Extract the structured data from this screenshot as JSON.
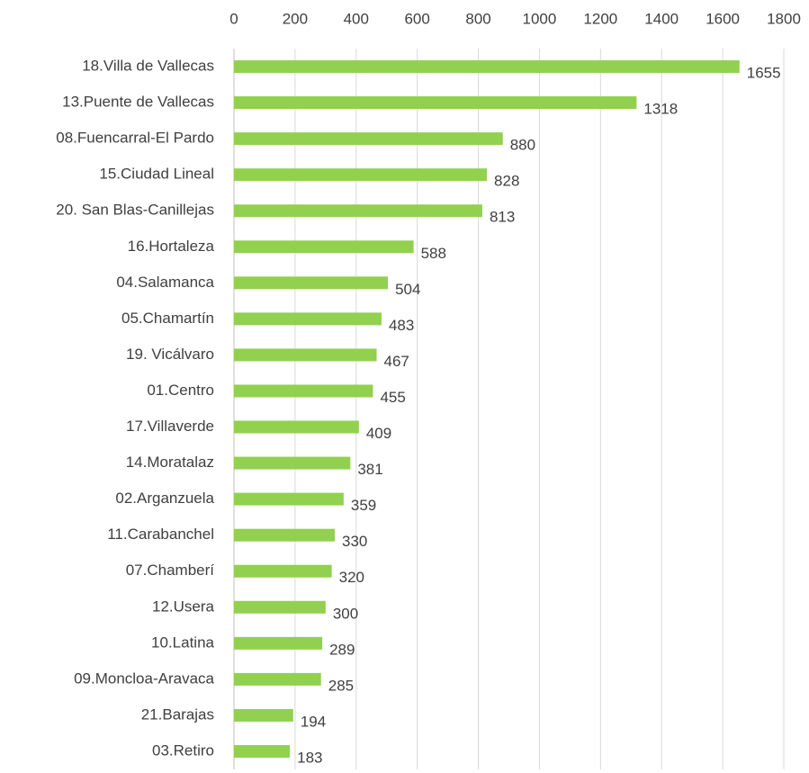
{
  "chart_data": {
    "type": "bar",
    "orientation": "horizontal",
    "categories": [
      "18.Villa de Vallecas",
      "13.Puente de Vallecas",
      "08.Fuencarral-El Pardo",
      "15.Ciudad Lineal",
      "20. San Blas-Canillejas",
      "16.Hortaleza",
      "04.Salamanca",
      "05.Chamartín",
      "19. Vicálvaro",
      "01.Centro",
      "17.Villaverde",
      "14.Moratalaz",
      "02.Arganzuela",
      "11.Carabanchel",
      "07.Chamberí",
      "12.Usera",
      "10.Latina",
      "09.Moncloa-Aravaca",
      "21.Barajas",
      "03.Retiro"
    ],
    "values": [
      1655,
      1318,
      880,
      828,
      813,
      588,
      504,
      483,
      467,
      455,
      409,
      381,
      359,
      330,
      320,
      300,
      289,
      285,
      194,
      183
    ],
    "color": "#92d050",
    "xlim": [
      0,
      1800
    ],
    "xticks": [
      0,
      200,
      400,
      600,
      800,
      1000,
      1200,
      1400,
      1600,
      1800
    ],
    "grid": true
  }
}
